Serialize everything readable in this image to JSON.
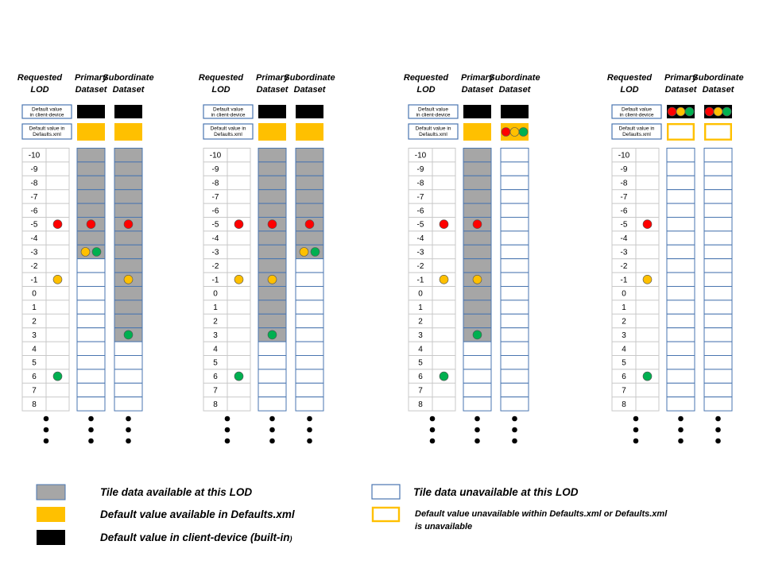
{
  "colors": {
    "available_fill": "#a6a6a6",
    "unavailable_fill": "#ffffff",
    "column_border": "#4a76b0",
    "yellow": "#ffc000",
    "black": "#000000",
    "red": "#ff0000",
    "green": "#00b050",
    "lod_grid": "#c8c8c8"
  },
  "headers": {
    "requested_lod": [
      "Requested",
      "LOD"
    ],
    "primary": [
      "Primary",
      "Dataset"
    ],
    "subordinate": [
      "Subordinate",
      "Dataset"
    ]
  },
  "row_labels": {
    "client_device": [
      "Default value",
      "in client-device"
    ],
    "defaults_xml": [
      "Default value in",
      "Defaults.xml"
    ]
  },
  "lod_levels": [
    "-10",
    "-9",
    "-8",
    "-7",
    "-6",
    "-5",
    "-4",
    "-3",
    "-2",
    "-1",
    "0",
    "1",
    "2",
    "3",
    "4",
    "5",
    "6",
    "7",
    "8"
  ],
  "scenarios": [
    {
      "requested": [
        {
          "lod": -5,
          "color": "red"
        },
        {
          "lod": -1,
          "color": "yellow"
        },
        {
          "lod": 6,
          "color": "green"
        }
      ],
      "primary": {
        "client_default": "black",
        "xml_default": "filled",
        "available_lods": [
          -10,
          -3
        ],
        "markers": [
          {
            "lod": -5,
            "colors": [
              "red"
            ]
          },
          {
            "lod": -3,
            "colors": [
              "yellow",
              "green"
            ]
          }
        ]
      },
      "subordinate": {
        "client_default": "black",
        "xml_default": "filled",
        "available_lods": [
          -10,
          3
        ],
        "markers": [
          {
            "lod": -5,
            "colors": [
              "red"
            ]
          },
          {
            "lod": -1,
            "colors": [
              "yellow"
            ]
          },
          {
            "lod": 3,
            "colors": [
              "green"
            ]
          }
        ]
      }
    },
    {
      "requested": [
        {
          "lod": -5,
          "color": "red"
        },
        {
          "lod": -1,
          "color": "yellow"
        },
        {
          "lod": 6,
          "color": "green"
        }
      ],
      "primary": {
        "client_default": "black",
        "xml_default": "filled",
        "available_lods": [
          -10,
          3
        ],
        "markers": [
          {
            "lod": -5,
            "colors": [
              "red"
            ]
          },
          {
            "lod": -1,
            "colors": [
              "yellow"
            ]
          },
          {
            "lod": 3,
            "colors": [
              "green"
            ]
          }
        ]
      },
      "subordinate": {
        "client_default": "black",
        "xml_default": "filled",
        "available_lods": [
          -10,
          -3
        ],
        "markers": [
          {
            "lod": -5,
            "colors": [
              "red"
            ]
          },
          {
            "lod": -3,
            "colors": [
              "yellow",
              "green"
            ]
          }
        ]
      }
    },
    {
      "requested": [
        {
          "lod": -5,
          "color": "red"
        },
        {
          "lod": -1,
          "color": "yellow"
        },
        {
          "lod": 6,
          "color": "green"
        }
      ],
      "primary": {
        "client_default": "black",
        "xml_default": "filled",
        "available_lods": [
          -10,
          3
        ],
        "markers": [
          {
            "lod": -5,
            "colors": [
              "red"
            ]
          },
          {
            "lod": -1,
            "colors": [
              "yellow"
            ]
          },
          {
            "lod": 3,
            "colors": [
              "green"
            ]
          }
        ]
      },
      "subordinate": {
        "client_default": "black",
        "xml_default": "filled-dots",
        "available_lods": null,
        "markers": []
      }
    },
    {
      "requested": [
        {
          "lod": -5,
          "color": "red"
        },
        {
          "lod": -1,
          "color": "yellow"
        },
        {
          "lod": 6,
          "color": "green"
        }
      ],
      "primary": {
        "client_default": "dots",
        "xml_default": "outline",
        "available_lods": null,
        "markers": []
      },
      "subordinate": {
        "client_default": "dots",
        "xml_default": "outline",
        "available_lods": null,
        "markers": []
      }
    }
  ],
  "legend": {
    "left": [
      {
        "swatch": "available",
        "label": "Tile data available at this LOD"
      },
      {
        "swatch": "yellow",
        "label": "Default value available in Defaults.xml"
      },
      {
        "swatch": "black",
        "label": "Default value in client-device (built-in",
        "label_small": ")"
      }
    ],
    "right": [
      {
        "swatch": "unavailable",
        "label": "Tile data  unavailable  at this LOD"
      },
      {
        "swatch": "yellow-outline",
        "lines": [
          "Default value unavailable within Defaults.xml  or Defaults.xml",
          "is unavailable"
        ]
      }
    ]
  }
}
